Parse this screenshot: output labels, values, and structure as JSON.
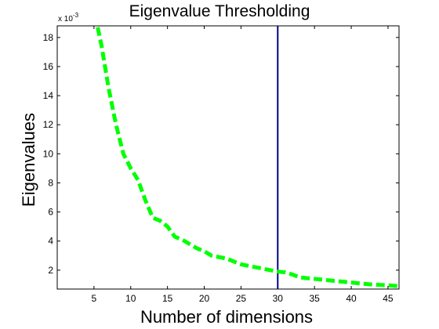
{
  "chart_data": {
    "type": "line",
    "title": "Eigenvalue Thresholding",
    "xlabel": "Number of dimensions",
    "ylabel": "Eigenvalues",
    "y_scale_note": "x 10",
    "y_scale_exponent": "-3",
    "xlim": [
      0,
      46.5
    ],
    "ylim": [
      0.7,
      18.8
    ],
    "x_ticks": [
      5,
      10,
      15,
      20,
      25,
      30,
      35,
      40,
      45
    ],
    "y_ticks": [
      2,
      4,
      6,
      8,
      10,
      12,
      14,
      16,
      18
    ],
    "grid": false,
    "series": [
      {
        "color": "#00ff00",
        "line_style": "dashed",
        "x": [
          5.5,
          6,
          7,
          8,
          9,
          10,
          11,
          12,
          13,
          14,
          15,
          16,
          17,
          18,
          19,
          20,
          21,
          22,
          23,
          24,
          25,
          26,
          27,
          28,
          29,
          30,
          31,
          32,
          33,
          34,
          35,
          36,
          37,
          38,
          39,
          40,
          41,
          42,
          43,
          44,
          45,
          46.5
        ],
        "y": [
          18.7,
          17.5,
          14.5,
          12.0,
          10.0,
          9.0,
          8.2,
          6.8,
          5.6,
          5.4,
          5.0,
          4.3,
          4.1,
          3.8,
          3.5,
          3.3,
          3.0,
          2.9,
          2.8,
          2.6,
          2.4,
          2.3,
          2.2,
          2.1,
          2.0,
          1.9,
          1.85,
          1.7,
          1.5,
          1.45,
          1.4,
          1.35,
          1.3,
          1.25,
          1.2,
          1.15,
          1.1,
          1.05,
          1.0,
          0.98,
          0.96,
          0.9
        ]
      }
    ],
    "threshold": {
      "x": 30,
      "color": "#00008b"
    }
  }
}
